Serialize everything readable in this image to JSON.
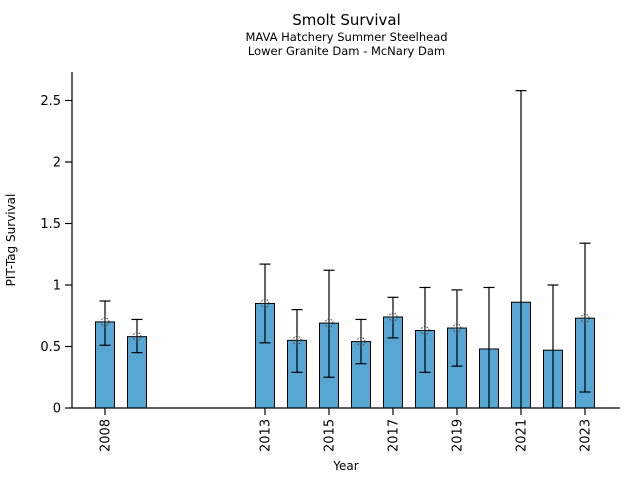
{
  "figure": {
    "title": "Smolt Survival",
    "subtitle1": "MAVA Hatchery Summer Steelhead",
    "subtitle2": "Lower Granite Dam - McNary Dam"
  },
  "chart_data": {
    "type": "bar",
    "title": "Smolt Survival",
    "subtitle": [
      "MAVA Hatchery Summer Steelhead",
      "Lower Granite Dam - McNary Dam"
    ],
    "xlabel": "Year",
    "ylabel": "PIT-Tag Survival",
    "ylim": [
      0,
      2.73
    ],
    "xlim": [
      2007,
      2024.7
    ],
    "grid": false,
    "legend": "none",
    "y_ticks": [
      0,
      0.5,
      1,
      1.5,
      2,
      2.5
    ],
    "y_tick_labels": [
      "0",
      "0.5",
      "1",
      "1.5",
      "2",
      "2.5"
    ],
    "x_tick_years": [
      2008,
      2013,
      2015,
      2017,
      2019,
      2021,
      2023
    ],
    "x_tick_labels": [
      "2008",
      "2013",
      "2015",
      "2017",
      "2019",
      "2021",
      "2023"
    ],
    "bar_fill_color": "#57A7D4",
    "bar_edge_color": "#000000",
    "error_bar_color": "#000000",
    "marker_style": "dotted-circle-with-cross",
    "points": [
      {
        "year": 2008,
        "value": 0.7,
        "ci_low": 0.51,
        "ci_high": 0.87,
        "marker": true
      },
      {
        "year": 2009,
        "value": 0.58,
        "ci_low": 0.45,
        "ci_high": 0.72,
        "marker": true
      },
      {
        "year": 2013,
        "value": 0.85,
        "ci_low": 0.53,
        "ci_high": 1.17,
        "marker": true
      },
      {
        "year": 2014,
        "value": 0.55,
        "ci_low": 0.29,
        "ci_high": 0.8,
        "marker": true
      },
      {
        "year": 2015,
        "value": 0.69,
        "ci_low": 0.25,
        "ci_high": 1.12,
        "marker": true
      },
      {
        "year": 2016,
        "value": 0.54,
        "ci_low": 0.36,
        "ci_high": 0.72,
        "marker": true
      },
      {
        "year": 2017,
        "value": 0.74,
        "ci_low": 0.57,
        "ci_high": 0.9,
        "marker": true
      },
      {
        "year": 2018,
        "value": 0.63,
        "ci_low": 0.29,
        "ci_high": 0.98,
        "marker": true
      },
      {
        "year": 2019,
        "value": 0.65,
        "ci_low": 0.34,
        "ci_high": 0.96,
        "marker": true
      },
      {
        "year": 2020,
        "value": 0.48,
        "ci_low": 0.0,
        "ci_high": 0.98,
        "marker": false
      },
      {
        "year": 2021,
        "value": 0.86,
        "ci_low": 0.0,
        "ci_high": 2.58,
        "marker": false
      },
      {
        "year": 2022,
        "value": 0.47,
        "ci_low": 0.0,
        "ci_high": 1.0,
        "marker": false
      },
      {
        "year": 2023,
        "value": 0.73,
        "ci_low": 0.13,
        "ci_high": 1.34,
        "marker": true
      }
    ]
  }
}
